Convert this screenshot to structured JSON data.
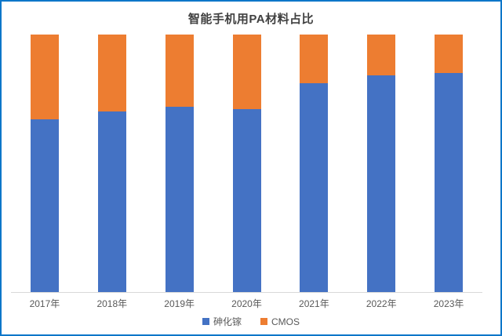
{
  "chart_data": {
    "type": "bar",
    "stacked": true,
    "title": "智能手机用PA材料占比",
    "categories": [
      "2017年",
      "2018年",
      "2019年",
      "2020年",
      "2021年",
      "2022年",
      "2023年"
    ],
    "series": [
      {
        "name": "砷化镓",
        "color": "#4472C4",
        "values": [
          67,
          70,
          72,
          71,
          81,
          84,
          85
        ]
      },
      {
        "name": "CMOS",
        "color": "#ED7D31",
        "values": [
          33,
          30,
          28,
          29,
          19,
          16,
          15
        ]
      }
    ],
    "xlabel": "",
    "ylabel": "",
    "ylim": [
      0,
      100
    ],
    "unit": "percent",
    "grid": false,
    "legend_position": "bottom",
    "y_axis_visible": false
  },
  "colors": {
    "frame_border": "#0d76c9",
    "axis_line": "#d9d9d9",
    "label_text": "#595959",
    "title_text": "#404040"
  }
}
